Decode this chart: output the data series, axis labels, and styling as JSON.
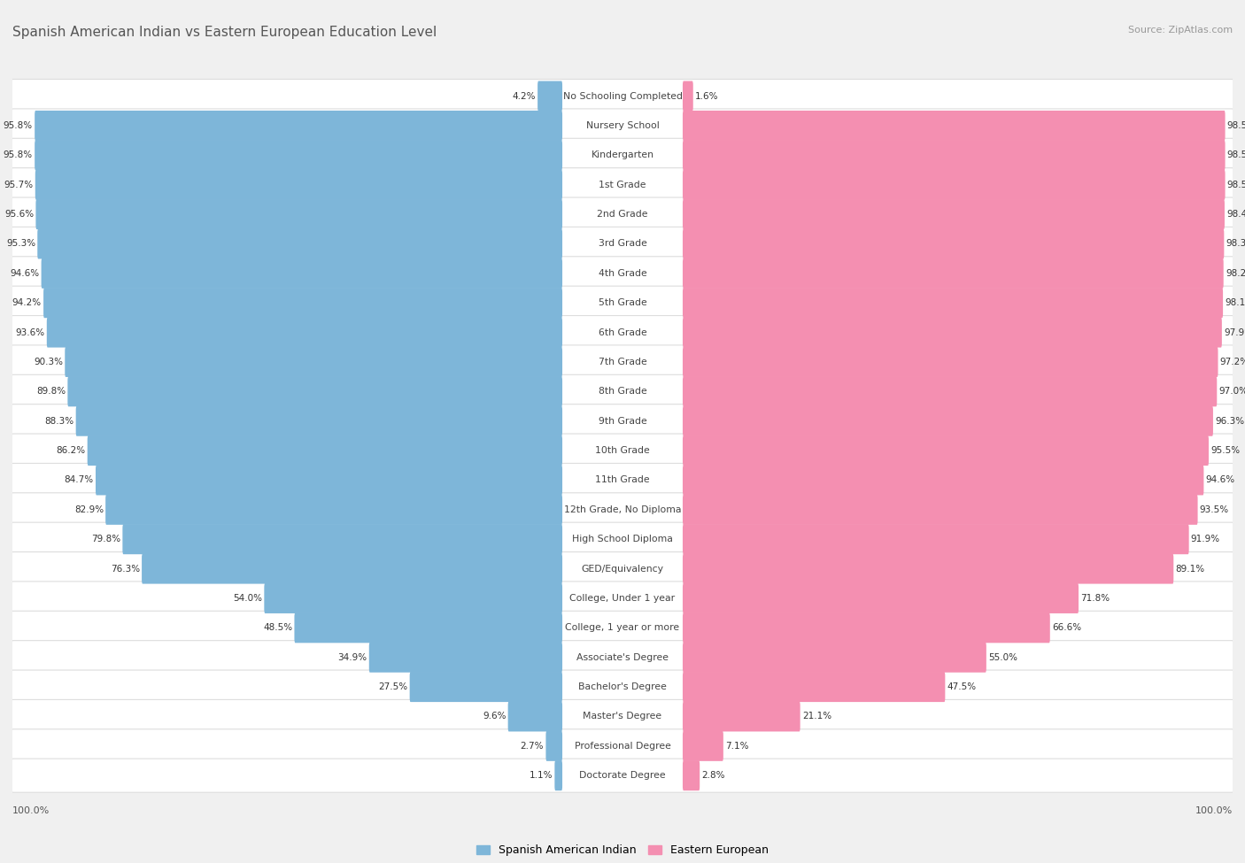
{
  "title": "Spanish American Indian vs Eastern European Education Level",
  "source": "Source: ZipAtlas.com",
  "categories": [
    "No Schooling Completed",
    "Nursery School",
    "Kindergarten",
    "1st Grade",
    "2nd Grade",
    "3rd Grade",
    "4th Grade",
    "5th Grade",
    "6th Grade",
    "7th Grade",
    "8th Grade",
    "9th Grade",
    "10th Grade",
    "11th Grade",
    "12th Grade, No Diploma",
    "High School Diploma",
    "GED/Equivalency",
    "College, Under 1 year",
    "College, 1 year or more",
    "Associate's Degree",
    "Bachelor's Degree",
    "Master's Degree",
    "Professional Degree",
    "Doctorate Degree"
  ],
  "left_values": [
    4.2,
    95.8,
    95.8,
    95.7,
    95.6,
    95.3,
    94.6,
    94.2,
    93.6,
    90.3,
    89.8,
    88.3,
    86.2,
    84.7,
    82.9,
    79.8,
    76.3,
    54.0,
    48.5,
    34.9,
    27.5,
    9.6,
    2.7,
    1.1
  ],
  "right_values": [
    1.6,
    98.5,
    98.5,
    98.5,
    98.4,
    98.3,
    98.2,
    98.1,
    97.9,
    97.2,
    97.0,
    96.3,
    95.5,
    94.6,
    93.5,
    91.9,
    89.1,
    71.8,
    66.6,
    55.0,
    47.5,
    21.1,
    7.1,
    2.8
  ],
  "left_color": "#7EB6D9",
  "right_color": "#F48FB1",
  "background_color": "#F0F0F0",
  "bar_background": "#FFFFFF",
  "legend_left": "Spanish American Indian",
  "legend_right": "Eastern European",
  "axis_label_left": "100.0%",
  "axis_label_right": "100.0%",
  "fig_width": 14.06,
  "fig_height": 9.75
}
